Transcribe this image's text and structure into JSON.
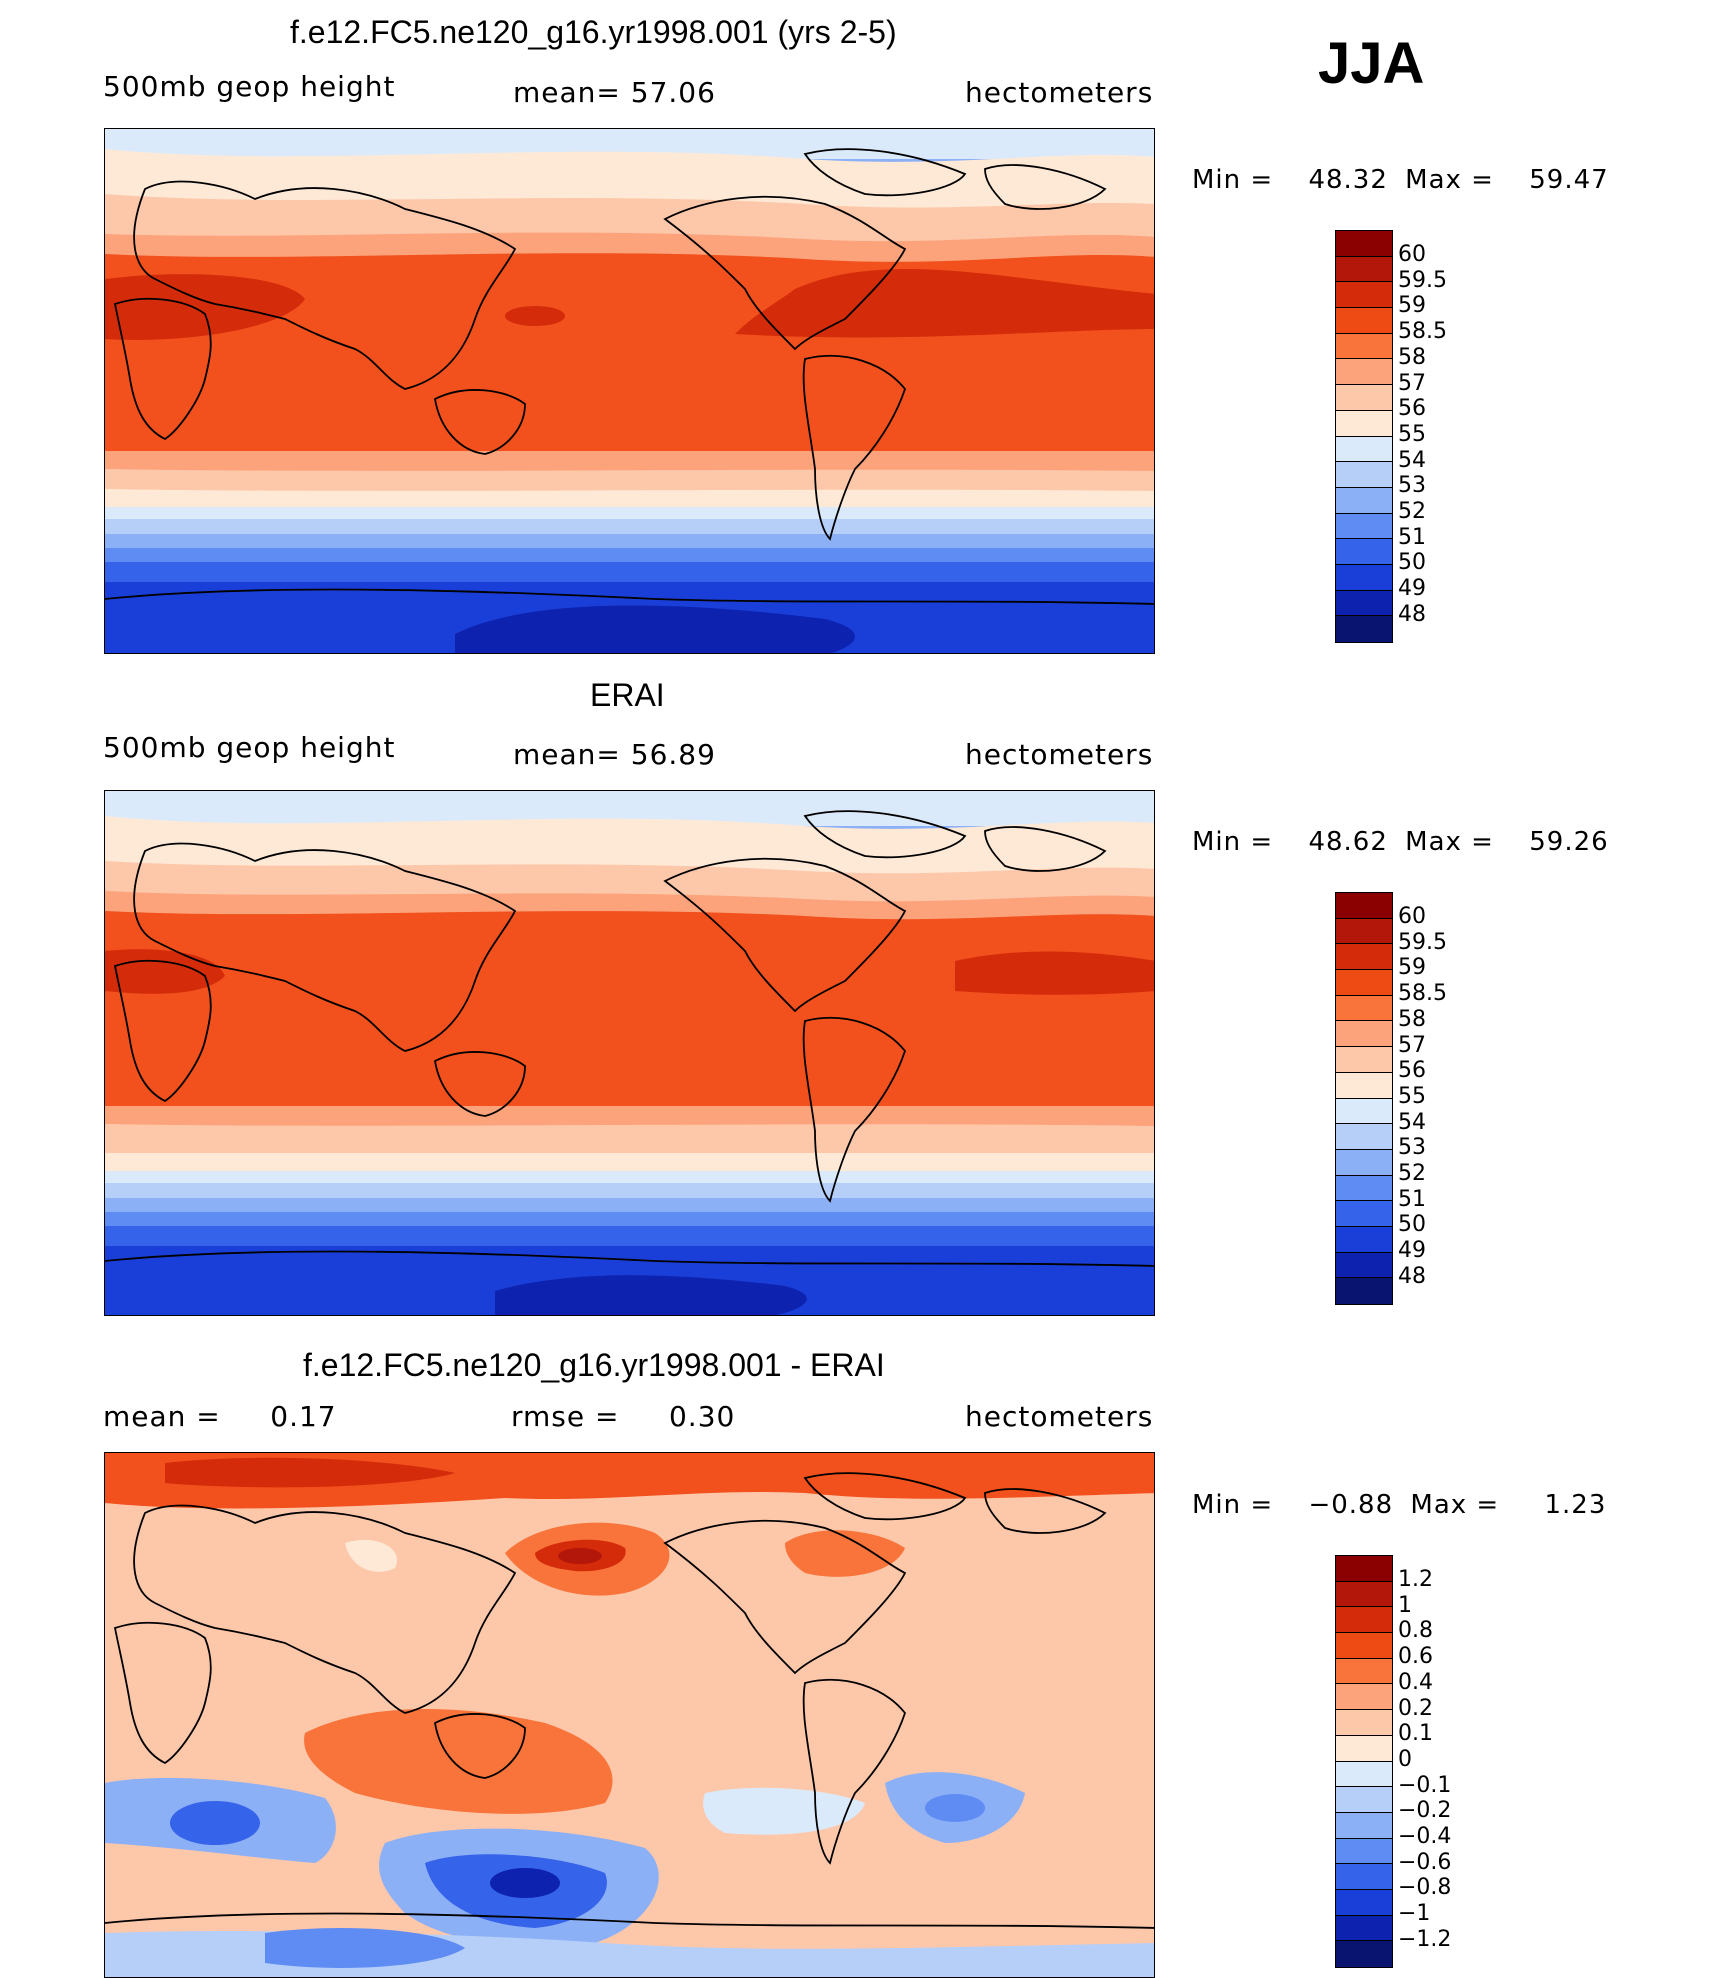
{
  "season": "JJA",
  "panels": [
    {
      "id": "model",
      "title": "f.e12.FC5.ne120_g16.yr1998.001 (yrs 2-5)",
      "left_label": "500mb geop height",
      "center_label": "mean=   57.06",
      "right_label": "hectometers",
      "min_label": "Min =",
      "min_value": "48.32",
      "max_label": "Max =",
      "max_value": "59.47",
      "colorbar_labels": [
        "60",
        "59.5",
        "59",
        "58.5",
        "58",
        "57",
        "56",
        "55",
        "54",
        "53",
        "52",
        "51",
        "50",
        "49",
        "48"
      ]
    },
    {
      "id": "obs",
      "title": "ERAI",
      "left_label": "500mb geop height",
      "center_label": "mean=   56.89",
      "right_label": "hectometers",
      "min_label": "Min =",
      "min_value": "48.62",
      "max_label": "Max =",
      "max_value": "59.26",
      "colorbar_labels": [
        "60",
        "59.5",
        "59",
        "58.5",
        "58",
        "57",
        "56",
        "55",
        "54",
        "53",
        "52",
        "51",
        "50",
        "49",
        "48"
      ]
    },
    {
      "id": "diff",
      "title": "f.e12.FC5.ne120_g16.yr1998.001 - ERAI",
      "left_label": "mean =     0.17",
      "center_label": "rmse =     0.30",
      "right_label": "hectometers",
      "min_label": "Min =",
      "min_value": "−0.88",
      "max_label": "Max =",
      "max_value": "1.23",
      "colorbar_labels": [
        "1.2",
        "1",
        "0.8",
        "0.6",
        "0.4",
        "0.2",
        "0.1",
        "0",
        "−0.1",
        "−0.2",
        "−0.4",
        "−0.6",
        "−0.8",
        "−1",
        "−1.2"
      ]
    }
  ],
  "colorbar_colors": [
    "#8b0000",
    "#b2170a",
    "#d42b0b",
    "#ee4a14",
    "#f9743a",
    "#fca37b",
    "#fdc7aa",
    "#fee9d6",
    "#dbeafa",
    "#b6cff8",
    "#8cb0f6",
    "#5f8cf2",
    "#3563ea",
    "#1a3fd8",
    "#0d22ae",
    "#08146f"
  ],
  "map_colors": {
    "dark_red": "#b2170a",
    "deep_red": "#d42b0b",
    "red_orange": "#f2501c",
    "orange": "#f9743a",
    "salmon": "#fca37b",
    "peach": "#fdc7aa",
    "cream": "#fee9d6",
    "pale_blue": "#dbeafa",
    "light_blue": "#b6cff8",
    "sky_blue": "#8cb0f6",
    "mid_blue": "#5f8cf2",
    "blue": "#3563ea",
    "royal_blue": "#1a3fd8",
    "navy": "#0d22ae"
  }
}
